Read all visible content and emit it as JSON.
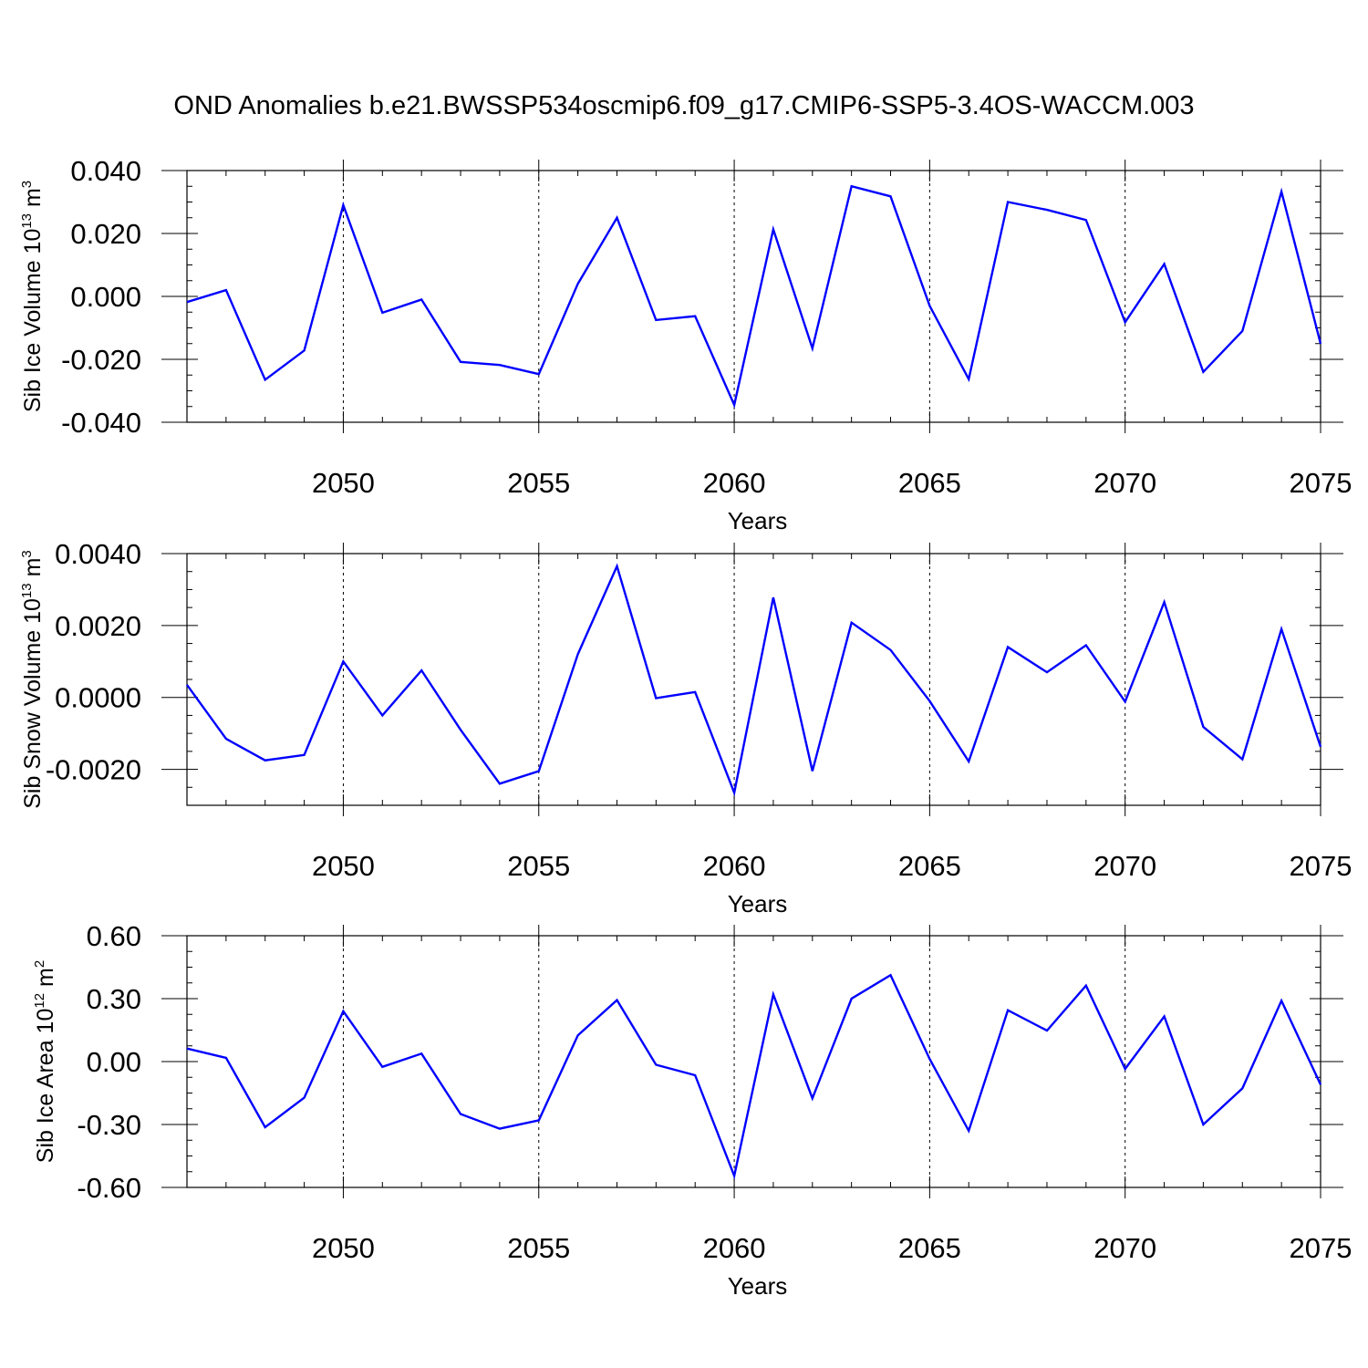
{
  "title": "OND Anomalies b.e21.BWSSP534oscmip6.f09_g17.CMIP6-SSP5-3.4OS-WACCM.003",
  "line_color": "#0000ff",
  "chart_data": [
    {
      "type": "line",
      "title": "OND Anomalies b.e21.BWSSP534oscmip6.f09_g17.CMIP6-SSP5-3.4OS-WACCM.003",
      "xlabel": "Years",
      "ylabel_main": "Sib Ice Volume 10",
      "ylabel_exp1": "13",
      "ylabel_unit": " m",
      "ylabel_exp2": "3",
      "xlim": [
        2046,
        2075
      ],
      "ylim": [
        -0.04,
        0.04
      ],
      "xticks": [
        2050,
        2055,
        2060,
        2065,
        2070,
        2075
      ],
      "xtick_labels": [
        "2050",
        "2055",
        "2060",
        "2065",
        "2070",
        "2075"
      ],
      "yticks": [
        -0.04,
        -0.02,
        0.0,
        0.02,
        0.04
      ],
      "ytick_labels": [
        "-0.040",
        "-0.020",
        "0.000",
        "0.020",
        "0.040"
      ],
      "grid": "vertical dashed at labeled x ticks",
      "series": [
        {
          "name": "Sib Ice Volume",
          "x": [
            2046,
            2047,
            2048,
            2049,
            2050,
            2051,
            2052,
            2053,
            2054,
            2055,
            2056,
            2057,
            2058,
            2059,
            2060,
            2061,
            2062,
            2063,
            2064,
            2065,
            2066,
            2067,
            2068,
            2069,
            2070,
            2071,
            2072,
            2073,
            2074,
            2075
          ],
          "values": [
            -0.0018,
            0.002,
            -0.0265,
            -0.0172,
            0.029,
            -0.0052,
            -0.001,
            -0.0208,
            -0.0218,
            -0.0247,
            0.004,
            0.025,
            -0.0075,
            -0.0063,
            -0.0345,
            0.0213,
            -0.0165,
            0.035,
            0.0318,
            -0.003,
            -0.0263,
            0.03,
            0.0275,
            0.0243,
            -0.0082,
            0.0103,
            -0.024,
            -0.011,
            0.0333,
            -0.015
          ]
        }
      ]
    },
    {
      "type": "line",
      "xlabel": "Years",
      "ylabel_main": "Sib Snow Volume 10",
      "ylabel_exp1": "13",
      "ylabel_unit": " m",
      "ylabel_exp2": "3",
      "xlim": [
        2046,
        2075
      ],
      "ylim": [
        -0.003,
        0.004
      ],
      "xticks": [
        2050,
        2055,
        2060,
        2065,
        2070,
        2075
      ],
      "xtick_labels": [
        "2050",
        "2055",
        "2060",
        "2065",
        "2070",
        "2075"
      ],
      "yticks": [
        -0.002,
        0.0,
        0.002,
        0.004
      ],
      "ytick_labels": [
        "-0.0020",
        "0.0000",
        "0.0020",
        "0.0040"
      ],
      "grid": "vertical dashed at labeled x ticks",
      "series": [
        {
          "name": "Sib Snow Volume",
          "x": [
            2046,
            2047,
            2048,
            2049,
            2050,
            2051,
            2052,
            2053,
            2054,
            2055,
            2056,
            2057,
            2058,
            2059,
            2060,
            2061,
            2062,
            2063,
            2064,
            2065,
            2066,
            2067,
            2068,
            2069,
            2070,
            2071,
            2072,
            2073,
            2074,
            2075
          ],
          "values": [
            0.00035,
            -0.00115,
            -0.00175,
            -0.0016,
            0.001,
            -0.0005,
            0.00075,
            -0.0009,
            -0.0024,
            -0.00205,
            0.0012,
            0.00365,
            -2e-05,
            0.00015,
            -0.00265,
            0.00278,
            -0.00205,
            0.00208,
            0.00132,
            -0.0001,
            -0.00178,
            0.0014,
            0.0007,
            0.00145,
            -0.00012,
            0.00265,
            -0.00082,
            -0.00172,
            0.0019,
            -0.00137
          ]
        }
      ]
    },
    {
      "type": "line",
      "xlabel": "Years",
      "ylabel_main": "Sib Ice Area 10",
      "ylabel_exp1": "12",
      "ylabel_unit": " m",
      "ylabel_exp2": "2",
      "xlim": [
        2046,
        2075
      ],
      "ylim": [
        -0.6,
        0.6
      ],
      "xticks": [
        2050,
        2055,
        2060,
        2065,
        2070,
        2075
      ],
      "xtick_labels": [
        "2050",
        "2055",
        "2060",
        "2065",
        "2070",
        "2075"
      ],
      "yticks": [
        -0.6,
        -0.3,
        0.0,
        0.3,
        0.6
      ],
      "ytick_labels": [
        "-0.60",
        "-0.30",
        "0.00",
        "0.30",
        "0.60"
      ],
      "grid": "vertical dashed at labeled x ticks",
      "series": [
        {
          "name": "Sib Ice Area",
          "x": [
            2046,
            2047,
            2048,
            2049,
            2050,
            2051,
            2052,
            2053,
            2054,
            2055,
            2056,
            2057,
            2058,
            2059,
            2060,
            2061,
            2062,
            2063,
            2064,
            2065,
            2066,
            2067,
            2068,
            2069,
            2070,
            2071,
            2072,
            2073,
            2074,
            2075
          ],
          "values": [
            0.062,
            0.018,
            -0.313,
            -0.172,
            0.24,
            -0.025,
            0.038,
            -0.25,
            -0.32,
            -0.28,
            0.125,
            0.293,
            -0.015,
            -0.065,
            -0.545,
            0.32,
            -0.175,
            0.3,
            0.412,
            0.012,
            -0.33,
            0.245,
            0.148,
            0.362,
            -0.035,
            0.215,
            -0.3,
            -0.128,
            0.29,
            -0.11
          ]
        }
      ]
    }
  ]
}
